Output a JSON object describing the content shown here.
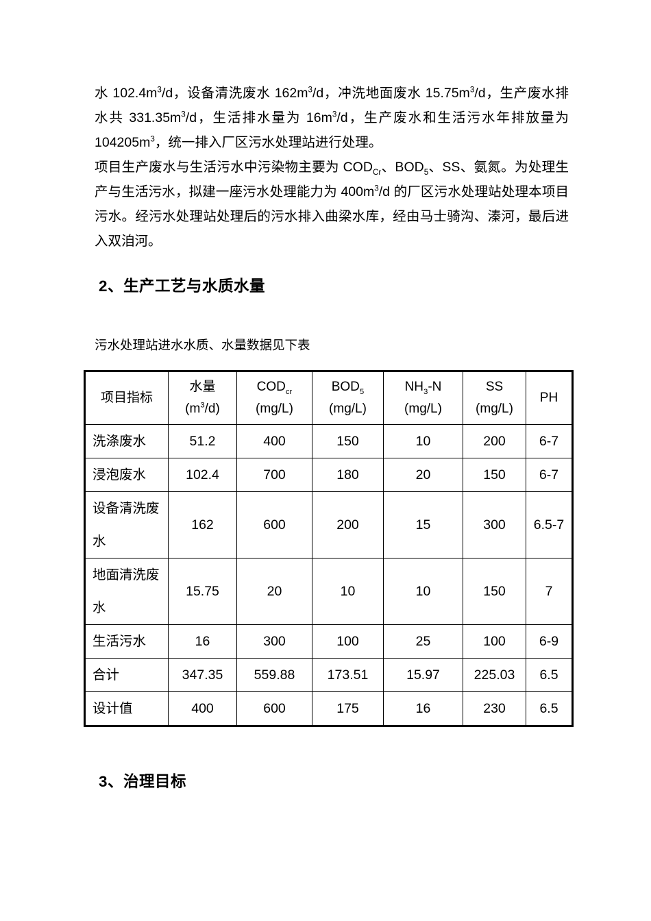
{
  "colors": {
    "background": "#ffffff",
    "text": "#000000",
    "table_border": "#000000"
  },
  "document": {
    "paragraph1_segments": [
      {
        "t": "text",
        "v": "水 102.4m"
      },
      {
        "t": "sup",
        "v": "3"
      },
      {
        "t": "text",
        "v": "/d，设备清洗废水 162m"
      },
      {
        "t": "sup",
        "v": "3"
      },
      {
        "t": "text",
        "v": "/d，冲洗地面废水 15.75m"
      },
      {
        "t": "sup",
        "v": "3"
      },
      {
        "t": "text",
        "v": "/d，生产废水排水共 331.35m"
      },
      {
        "t": "sup",
        "v": "3"
      },
      {
        "t": "text",
        "v": "/d，生活排水量为 16m"
      },
      {
        "t": "sup",
        "v": "3"
      },
      {
        "t": "text",
        "v": "/d，生产废水和生活污水年排放量为 104205m"
      },
      {
        "t": "sup",
        "v": "3"
      },
      {
        "t": "text",
        "v": "，统一排入厂区污水处理站进行处理。"
      }
    ],
    "paragraph2_segments": [
      {
        "t": "text",
        "v": "项目生产废水与生活污水中污染物主要为 COD"
      },
      {
        "t": "sub",
        "v": "Cr"
      },
      {
        "t": "text",
        "v": "、BOD"
      },
      {
        "t": "sub",
        "v": "5"
      },
      {
        "t": "text",
        "v": "、SS、氨氮。为处理生产与生活污水，拟建一座污水处理能力为 400m"
      },
      {
        "t": "sup",
        "v": "3"
      },
      {
        "t": "text",
        "v": "/d 的厂区污水处理站处理本项目污水。经污水处理站处理后的污水排入曲梁水库，经由马士骑沟、溱河，最后进入双洎河。"
      }
    ],
    "section2_heading": "2、生产工艺与水质水量",
    "table_caption": "污水处理站进水水质、水量数据见下表",
    "section3_heading": "3、治理目标"
  },
  "table": {
    "headers": [
      {
        "line1": [
          {
            "t": "text",
            "v": "项目指标"
          }
        ],
        "line2": []
      },
      {
        "line1": [
          {
            "t": "text",
            "v": "水量"
          }
        ],
        "line2": [
          {
            "t": "text",
            "v": "(m"
          },
          {
            "t": "sup",
            "v": "3"
          },
          {
            "t": "text",
            "v": "/d)"
          }
        ]
      },
      {
        "line1": [
          {
            "t": "text",
            "v": "COD"
          },
          {
            "t": "sub",
            "v": "cr"
          }
        ],
        "line2": [
          {
            "t": "text",
            "v": "(mg/L)"
          }
        ]
      },
      {
        "line1": [
          {
            "t": "text",
            "v": "BOD"
          },
          {
            "t": "sub",
            "v": "5"
          }
        ],
        "line2": [
          {
            "t": "text",
            "v": "(mg/L)"
          }
        ]
      },
      {
        "line1": [
          {
            "t": "text",
            "v": "NH"
          },
          {
            "t": "sub",
            "v": "3"
          },
          {
            "t": "text",
            "v": "-N"
          }
        ],
        "line2": [
          {
            "t": "text",
            "v": "(mg/L)"
          }
        ]
      },
      {
        "line1": [
          {
            "t": "text",
            "v": "SS"
          }
        ],
        "line2": [
          {
            "t": "text",
            "v": "(mg/L)"
          }
        ]
      },
      {
        "line1": [
          {
            "t": "text",
            "v": "PH"
          }
        ],
        "line2": []
      }
    ],
    "rows": [
      {
        "cells": [
          "洗涤废水",
          "51.2",
          "400",
          "150",
          "10",
          "200",
          "6-7"
        ]
      },
      {
        "cells": [
          "浸泡废水",
          "102.4",
          "700",
          "180",
          "20",
          "150",
          "6-7"
        ]
      },
      {
        "cells": [
          "设备清洗废水",
          "162",
          "600",
          "200",
          "15",
          "300",
          "6.5-7"
        ]
      },
      {
        "cells": [
          "地面清洗废水",
          "15.75",
          "20",
          "10",
          "10",
          "150",
          "7"
        ]
      },
      {
        "cells": [
          "生活污水",
          "16",
          "300",
          "100",
          "25",
          "100",
          "6-9"
        ]
      },
      {
        "cells": [
          "合计",
          "347.35",
          "559.88",
          "173.51",
          "15.97",
          "225.03",
          "6.5"
        ]
      },
      {
        "cells": [
          "设计值",
          "400",
          "600",
          "175",
          "16",
          "230",
          "6.5"
        ]
      }
    ]
  }
}
